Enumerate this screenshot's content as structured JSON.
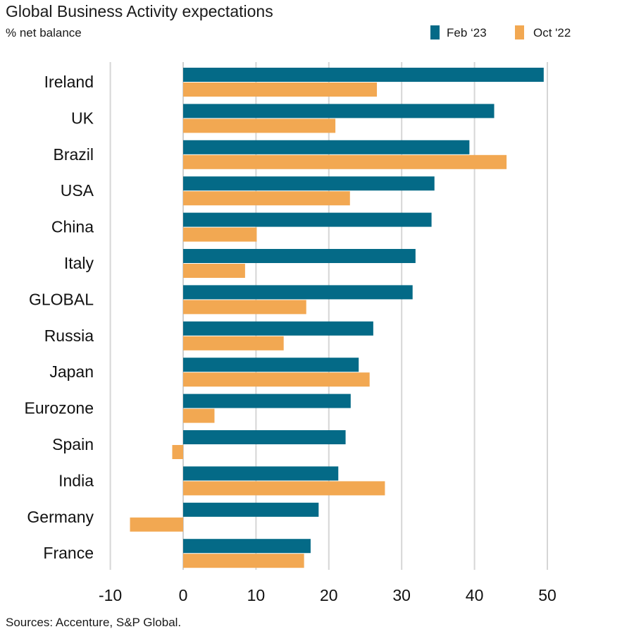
{
  "chart_data": {
    "type": "bar",
    "orientation": "horizontal",
    "title": "Global Business Activity expectations",
    "subtitle": "% net balance",
    "source": "Sources: Accenture, S&P Global.",
    "categories": [
      "Ireland",
      "UK",
      "Brazil",
      "USA",
      "China",
      "Italy",
      "GLOBAL",
      "Russia",
      "Japan",
      "Eurozone",
      "Spain",
      "India",
      "Germany",
      "France"
    ],
    "series": [
      {
        "name": "Feb ‘23",
        "color": "#046a87",
        "values": [
          49.5,
          42.7,
          39.3,
          34.5,
          34.1,
          31.9,
          31.5,
          26.1,
          24.1,
          23.0,
          22.3,
          21.3,
          18.6,
          17.5
        ]
      },
      {
        "name": "Oct '22",
        "color": "#f2a852",
        "values": [
          26.6,
          20.9,
          44.4,
          22.9,
          10.1,
          8.5,
          16.9,
          13.8,
          25.6,
          4.3,
          -1.5,
          27.7,
          -7.3,
          16.6
        ]
      }
    ],
    "xlim": [
      -10,
      55
    ],
    "xticks": [
      "-10",
      "0",
      "10",
      "20",
      "30",
      "40",
      "50"
    ],
    "grid": "vertical",
    "legend": "top-right"
  }
}
